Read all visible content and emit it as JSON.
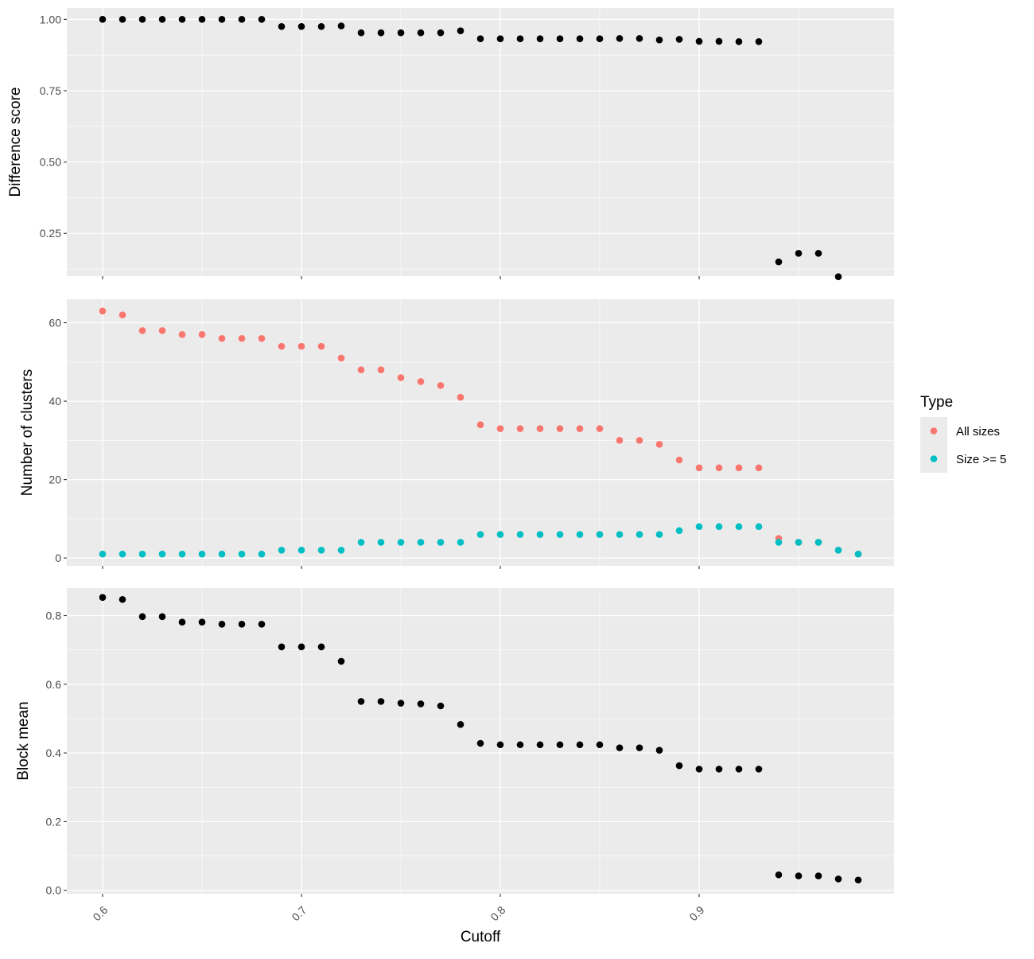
{
  "chart_data": {
    "type": "scatter",
    "xlabel": "Cutoff",
    "xlim": [
      0.582,
      0.998
    ],
    "x_ticks": [
      "0.6",
      "0.7",
      "0.8",
      "0.9"
    ],
    "panels": [
      {
        "ylabel": "Difference score",
        "ylim": [
          0.1,
          1.04
        ],
        "y_ticks": [
          "0.25",
          "0.50",
          "0.75",
          "1.00"
        ],
        "series": [
          {
            "color": "#000000",
            "x": [
              0.6,
              0.61,
              0.62,
              0.63,
              0.64,
              0.65,
              0.66,
              0.67,
              0.68,
              0.69,
              0.7,
              0.71,
              0.72,
              0.73,
              0.74,
              0.75,
              0.76,
              0.77,
              0.78,
              0.79,
              0.8,
              0.81,
              0.82,
              0.83,
              0.84,
              0.85,
              0.86,
              0.87,
              0.88,
              0.89,
              0.9,
              0.91,
              0.92,
              0.93,
              0.94,
              0.95,
              0.96,
              0.97
            ],
            "y": [
              1.0,
              1.0,
              1.0,
              1.0,
              1.0,
              1.0,
              1.0,
              1.0,
              1.0,
              0.975,
              0.975,
              0.975,
              0.977,
              0.953,
              0.953,
              0.953,
              0.953,
              0.953,
              0.96,
              0.932,
              0.932,
              0.932,
              0.932,
              0.932,
              0.932,
              0.932,
              0.933,
              0.933,
              0.928,
              0.93,
              0.923,
              0.923,
              0.922,
              0.922,
              0.15,
              0.18,
              0.18,
              0.098
            ]
          }
        ]
      },
      {
        "ylabel": "Number of clusters",
        "ylim": [
          -2,
          66
        ],
        "y_ticks": [
          "0",
          "20",
          "40",
          "60"
        ],
        "series": [
          {
            "name": "All sizes",
            "color": "#F8766D",
            "x": [
              0.6,
              0.61,
              0.62,
              0.63,
              0.64,
              0.65,
              0.66,
              0.67,
              0.68,
              0.69,
              0.7,
              0.71,
              0.72,
              0.73,
              0.74,
              0.75,
              0.76,
              0.77,
              0.78,
              0.79,
              0.8,
              0.81,
              0.82,
              0.83,
              0.84,
              0.85,
              0.86,
              0.87,
              0.88,
              0.89,
              0.9,
              0.91,
              0.92,
              0.93,
              0.94,
              0.95,
              0.96,
              0.97,
              0.98
            ],
            "y": [
              63,
              62,
              58,
              58,
              57,
              57,
              56,
              56,
              56,
              54,
              54,
              54,
              51,
              48,
              48,
              46,
              45,
              44,
              41,
              34,
              33,
              33,
              33,
              33,
              33,
              33,
              30,
              30,
              29,
              25,
              23,
              23,
              23,
              23,
              5,
              4,
              4,
              2,
              1
            ]
          },
          {
            "name": "Size >= 5",
            "color": "#00BFC4",
            "x": [
              0.6,
              0.61,
              0.62,
              0.63,
              0.64,
              0.65,
              0.66,
              0.67,
              0.68,
              0.69,
              0.7,
              0.71,
              0.72,
              0.73,
              0.74,
              0.75,
              0.76,
              0.77,
              0.78,
              0.79,
              0.8,
              0.81,
              0.82,
              0.83,
              0.84,
              0.85,
              0.86,
              0.87,
              0.88,
              0.89,
              0.9,
              0.91,
              0.92,
              0.93,
              0.94,
              0.95,
              0.96,
              0.97,
              0.98
            ],
            "y": [
              1,
              1,
              1,
              1,
              1,
              1,
              1,
              1,
              1,
              2,
              2,
              2,
              2,
              4,
              4,
              4,
              4,
              4,
              4,
              6,
              6,
              6,
              6,
              6,
              6,
              6,
              6,
              6,
              6,
              7,
              8,
              8,
              8,
              8,
              4,
              4,
              4,
              2,
              1
            ]
          }
        ]
      },
      {
        "ylabel": "Block mean",
        "ylim": [
          -0.01,
          0.88
        ],
        "y_ticks": [
          "0.0",
          "0.2",
          "0.4",
          "0.6",
          "0.8"
        ],
        "series": [
          {
            "color": "#000000",
            "x": [
              0.6,
              0.61,
              0.62,
              0.63,
              0.64,
              0.65,
              0.66,
              0.67,
              0.68,
              0.69,
              0.7,
              0.71,
              0.72,
              0.73,
              0.74,
              0.75,
              0.76,
              0.77,
              0.78,
              0.79,
              0.8,
              0.81,
              0.82,
              0.83,
              0.84,
              0.85,
              0.86,
              0.87,
              0.88,
              0.89,
              0.9,
              0.91,
              0.92,
              0.93,
              0.94,
              0.95,
              0.96,
              0.97,
              0.98
            ],
            "y": [
              0.853,
              0.847,
              0.797,
              0.797,
              0.781,
              0.781,
              0.775,
              0.775,
              0.775,
              0.709,
              0.709,
              0.709,
              0.667,
              0.55,
              0.55,
              0.545,
              0.543,
              0.537,
              0.483,
              0.428,
              0.424,
              0.424,
              0.424,
              0.424,
              0.424,
              0.424,
              0.415,
              0.415,
              0.408,
              0.363,
              0.353,
              0.353,
              0.353,
              0.353,
              0.045,
              0.042,
              0.042,
              0.033,
              0.03
            ]
          }
        ]
      }
    ],
    "legend": {
      "title": "Type",
      "position": "right",
      "entries": [
        "All sizes",
        "Size >= 5"
      ],
      "colors": [
        "#F8766D",
        "#00BFC4"
      ]
    },
    "grid": true,
    "panel_background": "#EBEBEB"
  }
}
